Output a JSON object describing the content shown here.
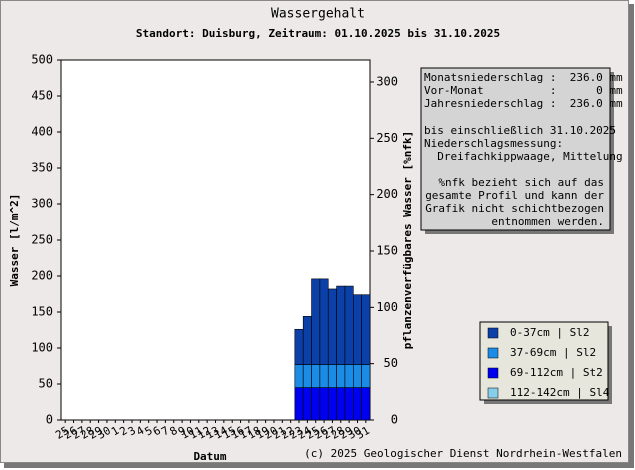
{
  "chart_data": {
    "type": "stacked_bar",
    "title": "Wassergehalt",
    "subtitle": "Standort: Duisburg, Zeitraum: 01.10.2025 bis 31.10.2025",
    "x_label": "Datum",
    "y_label": "Wasser [l/m^2]",
    "y2_label": "pflanzenverfügbares Wasser [%nfk]",
    "categories": [
      "25",
      "26",
      "27",
      "28",
      "29",
      "30",
      "1",
      "2",
      "3",
      "4",
      "5",
      "6",
      "7",
      "8",
      "9",
      "10",
      "11",
      "12",
      "13",
      "14",
      "15",
      "16",
      "17",
      "18",
      "19",
      "20",
      "21",
      "22",
      "23",
      "24",
      "25",
      "26",
      "27",
      "28",
      "29",
      "30",
      "31"
    ],
    "series": [
      {
        "name": "0-37cm | Sl2",
        "color": "#0b40a8",
        "values": [
          null,
          null,
          null,
          null,
          null,
          null,
          null,
          null,
          null,
          null,
          null,
          null,
          null,
          null,
          null,
          null,
          null,
          null,
          null,
          null,
          null,
          null,
          null,
          null,
          null,
          null,
          null,
          null,
          49,
          67,
          119,
          119,
          105,
          109,
          109,
          97,
          97
        ]
      },
      {
        "name": "37-69cm | Sl2",
        "color": "#1a8ce6",
        "values": [
          null,
          null,
          null,
          null,
          null,
          null,
          null,
          null,
          null,
          null,
          null,
          null,
          null,
          null,
          null,
          null,
          null,
          null,
          null,
          null,
          null,
          null,
          null,
          null,
          null,
          null,
          null,
          null,
          32,
          32,
          32,
          32,
          32,
          32,
          32,
          32,
          32
        ]
      },
      {
        "name": "69-112cm | St2",
        "color": "#0000f0",
        "values": [
          null,
          null,
          null,
          null,
          null,
          null,
          null,
          null,
          null,
          null,
          null,
          null,
          null,
          null,
          null,
          null,
          null,
          null,
          null,
          null,
          null,
          null,
          null,
          null,
          null,
          null,
          null,
          null,
          45,
          45,
          45,
          45,
          45,
          45,
          45,
          45,
          45
        ]
      },
      {
        "name": "112-142cm | Sl4",
        "color": "#87ceeb",
        "values": [
          null,
          null,
          null,
          null,
          null,
          null,
          null,
          null,
          null,
          null,
          null,
          null,
          null,
          null,
          null,
          null,
          null,
          null,
          null,
          null,
          null,
          null,
          null,
          null,
          null,
          null,
          null,
          null,
          0,
          0,
          0,
          0,
          0,
          0,
          0,
          0,
          0
        ]
      }
    ],
    "ylim": [
      0,
      500
    ],
    "yticks": [
      0,
      50,
      100,
      150,
      200,
      250,
      300,
      350,
      400,
      450,
      500
    ],
    "y2lim": [
      0,
      319.5
    ],
    "y2ticks": [
      0,
      50,
      100,
      150,
      200,
      250,
      300
    ],
    "info_stats": [
      "Monatsniederschlag :  236.0 mm",
      "Vor-Monat          :      0 mm",
      "Jahresniederschlag :  236.0 mm"
    ],
    "info_measurement": [
      "bis einschließlich 31.10.2025",
      "Niederschlagsmessung:",
      "  Dreifachkippwaage, Mittelung"
    ],
    "info_note": [
      "%nfk bezieht sich auf das",
      "gesamte Profil und kann der",
      "Grafik nicht schichtbezogen",
      "entnommen werden."
    ],
    "copyright": "(c) 2025 Geologischer Dienst Nordrhein-Westfalen"
  }
}
